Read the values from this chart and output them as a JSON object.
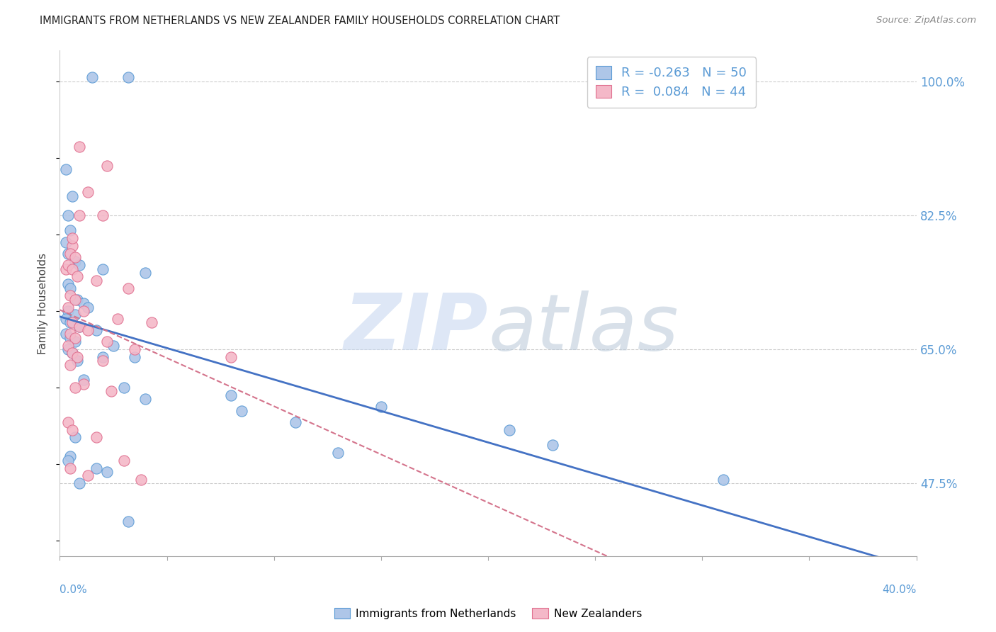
{
  "title": "IMMIGRANTS FROM NETHERLANDS VS NEW ZEALANDER FAMILY HOUSEHOLDS CORRELATION CHART",
  "source": "Source: ZipAtlas.com",
  "ylabel": "Family Households",
  "yticks": [
    47.5,
    65.0,
    82.5,
    100.0
  ],
  "ytick_labels": [
    "47.5%",
    "65.0%",
    "82.5%",
    "100.0%"
  ],
  "xmin": 0.0,
  "xmax": 40.0,
  "ymin": 38.0,
  "ymax": 104.0,
  "blue_color": "#aec6e8",
  "pink_color": "#f4b8c8",
  "blue_edge_color": "#5b9bd5",
  "pink_edge_color": "#e07090",
  "blue_line_color": "#4472c4",
  "pink_line_color": "#d4748c",
  "legend_blue_label": "R = -0.263   N = 50",
  "legend_pink_label": "R =  0.084   N = 44",
  "blue_scatter_x": [
    1.5,
    3.2,
    0.3,
    0.6,
    0.4,
    0.5,
    0.3,
    0.4,
    0.7,
    0.9,
    2.0,
    4.0,
    0.4,
    0.5,
    0.8,
    1.1,
    1.3,
    0.4,
    0.7,
    0.3,
    0.5,
    0.9,
    1.7,
    0.3,
    0.5,
    0.7,
    2.5,
    0.4,
    0.6,
    2.0,
    3.5,
    0.8,
    1.1,
    3.0,
    8.0,
    15.0,
    8.5,
    11.0,
    21.0,
    23.0,
    13.0,
    0.5,
    0.4,
    1.7,
    2.2,
    4.0,
    0.7,
    0.9,
    31.0,
    3.2
  ],
  "blue_scatter_y": [
    100.5,
    100.5,
    88.5,
    85.0,
    82.5,
    80.5,
    79.0,
    77.5,
    76.5,
    76.0,
    75.5,
    75.0,
    73.5,
    73.0,
    71.5,
    71.0,
    70.5,
    70.0,
    69.5,
    69.0,
    68.5,
    68.0,
    67.5,
    67.0,
    66.5,
    66.0,
    65.5,
    65.0,
    64.5,
    64.0,
    64.0,
    63.5,
    61.0,
    60.0,
    59.0,
    57.5,
    57.0,
    55.5,
    54.5,
    52.5,
    51.5,
    51.0,
    50.5,
    49.5,
    49.0,
    58.5,
    53.5,
    47.5,
    48.0,
    42.5
  ],
  "pink_scatter_x": [
    0.3,
    0.6,
    0.9,
    1.3,
    2.2,
    2.0,
    0.5,
    0.7,
    0.4,
    0.6,
    0.8,
    1.7,
    3.2,
    0.5,
    0.7,
    0.4,
    1.1,
    2.7,
    0.6,
    0.9,
    1.3,
    0.5,
    0.7,
    2.2,
    0.4,
    3.5,
    0.6,
    0.8,
    2.0,
    0.5,
    1.1,
    0.7,
    2.4,
    0.4,
    0.6,
    1.7,
    8.0,
    3.0,
    0.5,
    3.8,
    1.3,
    0.9,
    4.3,
    0.6
  ],
  "pink_scatter_y": [
    75.5,
    78.5,
    82.5,
    85.5,
    89.0,
    82.5,
    77.5,
    77.0,
    76.0,
    75.5,
    74.5,
    74.0,
    73.0,
    72.0,
    71.5,
    70.5,
    70.0,
    69.0,
    68.5,
    68.0,
    67.5,
    67.0,
    66.5,
    66.0,
    65.5,
    65.0,
    64.5,
    64.0,
    63.5,
    63.0,
    60.5,
    60.0,
    59.5,
    55.5,
    54.5,
    53.5,
    64.0,
    50.5,
    49.5,
    48.0,
    48.5,
    91.5,
    68.5,
    79.5
  ]
}
